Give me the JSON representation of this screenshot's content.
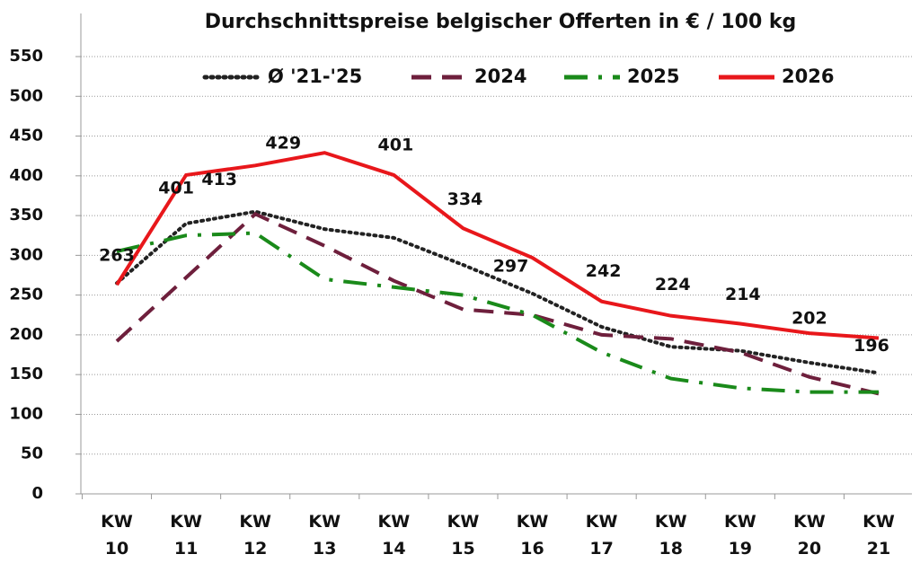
{
  "chart_data": {
    "type": "line",
    "title": "Durchschnittspreise belgischer Offerten in € / 100 kg",
    "categories": [
      "KW 10",
      "KW 11",
      "KW 12",
      "KW 13",
      "KW 14",
      "KW 15",
      "KW 16",
      "KW 17",
      "KW 18",
      "KW 19",
      "KW 20",
      "KW 21"
    ],
    "series": [
      {
        "name": "Ø '21-'25",
        "color": "#222222",
        "style": "dotted",
        "values": [
          265,
          340,
          355,
          333,
          322,
          288,
          252,
          210,
          185,
          180,
          165,
          152
        ]
      },
      {
        "name": "2024",
        "color": "#6e1f3c",
        "style": "dashed",
        "values": [
          192,
          272,
          352,
          312,
          268,
          232,
          225,
          200,
          195,
          178,
          147,
          126
        ]
      },
      {
        "name": "2025",
        "color": "#1a8a1a",
        "style": "dashdot",
        "values": [
          305,
          325,
          328,
          270,
          260,
          250,
          225,
          178,
          145,
          133,
          128,
          128
        ]
      },
      {
        "name": "2026",
        "color": "#e8171b",
        "style": "solid",
        "values": [
          263,
          401,
          413,
          429,
          401,
          334,
          297,
          242,
          224,
          214,
          202,
          196
        ],
        "labels": true
      }
    ],
    "ylim": [
      0,
      550
    ],
    "yticks": [
      0,
      50,
      100,
      150,
      200,
      250,
      300,
      350,
      400,
      450,
      500,
      550
    ],
    "grid": true,
    "legend": "top"
  }
}
